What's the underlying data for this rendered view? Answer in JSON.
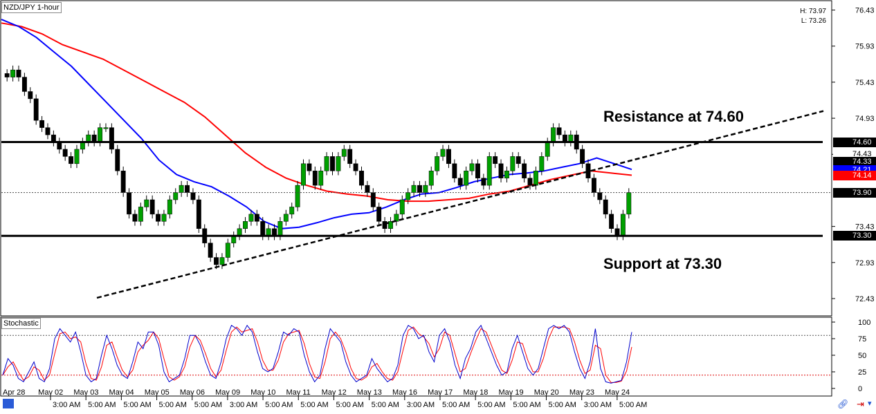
{
  "window": {
    "title": "NZD/JPY 1-hour",
    "high_label": "H: 73.97",
    "low_label": "L: 73.26",
    "indicator_title": "Stochastic"
  },
  "price_badges": [
    {
      "text": "74.60",
      "value": 74.6,
      "color": "#000000"
    },
    {
      "text": "74.43",
      "value": 74.43,
      "color": "#ffffff"
    },
    {
      "text": "74.33",
      "value": 74.33,
      "color": "#000000"
    },
    {
      "text": "74.21",
      "value": 74.21,
      "color": "#0000ff"
    },
    {
      "text": "74.14",
      "value": 74.14,
      "color": "#ff0000"
    },
    {
      "text": "73.90",
      "value": 73.9,
      "color": "#000000"
    },
    {
      "text": "73.30",
      "value": 73.3,
      "color": "#000000"
    }
  ],
  "annotations": {
    "resistance": "Resistance at 74.60",
    "support": "Support at 73.30"
  },
  "colors": {
    "bull_candle": "#00a000",
    "bear_candle": "#000000",
    "ma_fast": "#0000ff",
    "ma_slow": "#ff0000",
    "stoch_k": "#0000cc",
    "stoch_d": "#ff0000"
  },
  "chart_data": [
    {
      "type": "line",
      "title": "NZD/JPY 1-hour",
      "ylim": [
        72.2,
        76.55
      ],
      "y_ticks": [
        "76.43",
        "75.93",
        "75.43",
        "74.93",
        "74.43",
        "73.43",
        "72.93",
        "72.43"
      ],
      "x_ticks": [
        "Apr 28",
        "May 02",
        "May 03",
        "May 04",
        "May 05",
        "May 06",
        "May 09",
        "May 10",
        "May 11",
        "May 12",
        "May 13",
        "May 16",
        "May 17",
        "May 18",
        "May 19",
        "May 20",
        "May 23",
        "May 24"
      ],
      "x_ticks_time": [
        "3:00 AM",
        "5:00 AM",
        "5:00 AM",
        "5:00 AM",
        "5:00 AM",
        "3:00 AM",
        "5:00 AM",
        "5:00 AM",
        "5:00 AM",
        "5:00 AM",
        "3:00 AM",
        "5:00 AM",
        "5:00 AM",
        "5:00 AM",
        "5:00 AM",
        "3:00 AM",
        "5:00 AM"
      ],
      "horizontal_lines": [
        74.6,
        73.3
      ],
      "current_price": 73.9,
      "trendline": {
        "start": 72.44,
        "end": 75.03
      },
      "close_series": [
        75.5,
        75.6,
        75.5,
        75.3,
        75.2,
        74.9,
        74.8,
        74.7,
        74.6,
        74.5,
        74.4,
        74.3,
        74.5,
        74.6,
        74.7,
        74.6,
        74.8,
        74.8,
        74.5,
        74.2,
        73.9,
        73.6,
        73.5,
        73.7,
        73.8,
        73.6,
        73.5,
        73.6,
        73.8,
        73.9,
        74.0,
        73.9,
        73.8,
        73.4,
        73.2,
        73.0,
        72.9,
        73.0,
        73.2,
        73.3,
        73.4,
        73.5,
        73.6,
        73.5,
        73.3,
        73.4,
        73.3,
        73.5,
        73.6,
        73.7,
        74.0,
        74.3,
        74.2,
        74.0,
        74.2,
        74.4,
        74.2,
        74.4,
        74.5,
        74.3,
        74.2,
        74.0,
        73.9,
        73.7,
        73.5,
        73.4,
        73.5,
        73.6,
        73.8,
        73.9,
        74.0,
        73.9,
        74.0,
        74.2,
        74.4,
        74.5,
        74.3,
        74.1,
        74.0,
        74.2,
        74.3,
        74.1,
        74.0,
        74.4,
        74.3,
        74.1,
        74.2,
        74.4,
        74.3,
        74.1,
        74.0,
        74.2,
        74.4,
        74.6,
        74.8,
        74.7,
        74.6,
        74.7,
        74.5,
        74.3,
        74.1,
        73.9,
        73.8,
        73.6,
        73.4,
        73.3,
        73.6,
        73.9
      ],
      "ma_fast_series": [
        76.3,
        76.2,
        76.05,
        75.85,
        75.65,
        75.4,
        75.15,
        74.9,
        74.65,
        74.35,
        74.15,
        74.05,
        73.98,
        73.85,
        73.7,
        73.5,
        73.4,
        73.42,
        73.48,
        73.55,
        73.6,
        73.62,
        73.7,
        73.8,
        73.88,
        73.9,
        73.97,
        74.05,
        74.1,
        74.15,
        74.17,
        74.2,
        74.25,
        74.3,
        74.38,
        74.3,
        74.22
      ],
      "ma_slow_series": [
        76.25,
        76.2,
        76.1,
        75.95,
        75.85,
        75.75,
        75.6,
        75.45,
        75.3,
        75.15,
        74.95,
        74.7,
        74.45,
        74.25,
        74.1,
        74.0,
        73.92,
        73.88,
        73.85,
        73.8,
        73.78,
        73.78,
        73.8,
        73.82,
        73.88,
        73.92,
        74.0,
        74.08,
        74.14,
        74.2,
        74.17,
        74.14
      ]
    },
    {
      "type": "line",
      "title": "Stochastic",
      "ylim": [
        0,
        100
      ],
      "y_ticks": [
        "100",
        "75",
        "50",
        "25",
        "0"
      ],
      "levels": [
        80,
        20
      ],
      "series": [
        {
          "name": "",
          "values": [
            20,
            45,
            35,
            15,
            10,
            25,
            40,
            15,
            10,
            30,
            75,
            90,
            80,
            70,
            85,
            55,
            20,
            10,
            15,
            50,
            80,
            60,
            35,
            20,
            15,
            40,
            70,
            60,
            85,
            85,
            65,
            25,
            10,
            15,
            20,
            45,
            80,
            80,
            65,
            40,
            20,
            15,
            40,
            75,
            95,
            90,
            80,
            95,
            85,
            55,
            30,
            25,
            30,
            55,
            85,
            80,
            90,
            85,
            50,
            25,
            10,
            20,
            60,
            90,
            80,
            70,
            40,
            20,
            10,
            15,
            20,
            45,
            30,
            20,
            10,
            15,
            35,
            80,
            95,
            90,
            75,
            80,
            55,
            40,
            80,
            90,
            70,
            35,
            15,
            45,
            60,
            85,
            95,
            75,
            55,
            35,
            20,
            25,
            60,
            80,
            55,
            30,
            20,
            30,
            60,
            90,
            95,
            90,
            95,
            85,
            55,
            30,
            15,
            40,
            90,
            30,
            10,
            8,
            10,
            12,
            40,
            85
          ]
        }
      ]
    }
  ]
}
